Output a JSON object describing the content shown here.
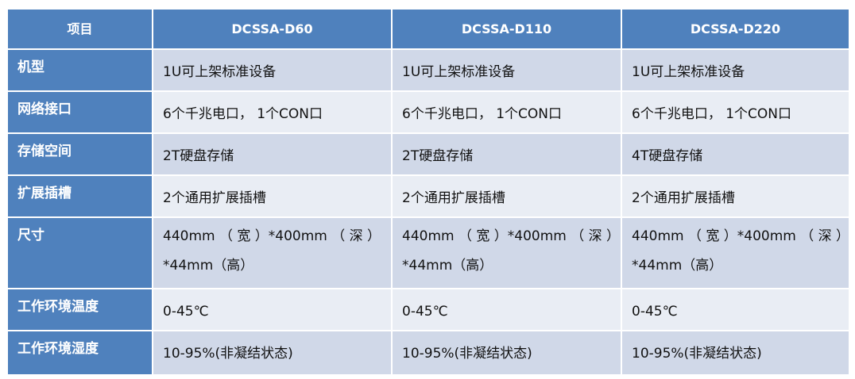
{
  "colors": {
    "header": "#4f81bd",
    "row_dark": "#d0d8e8",
    "row_light": "#e9edf4"
  },
  "table": {
    "headers": [
      "项目",
      "DCSSA-D60",
      "DCSSA-D110",
      "DCSSA-D220"
    ],
    "rows": [
      {
        "label": "机型",
        "values": [
          "1U可上架标准设备",
          "1U可上架标准设备",
          "1U可上架标准设备"
        ]
      },
      {
        "label": "网络接口",
        "values": [
          "6个千兆电口， 1个CON口",
          "6个千兆电口， 1个CON口",
          "6个千兆电口， 1个CON口"
        ]
      },
      {
        "label": "存储空间",
        "values": [
          "2T硬盘存储",
          "2T硬盘存储",
          "4T硬盘存储"
        ]
      },
      {
        "label": "扩展插槽",
        "values": [
          "2个通用扩展插槽",
          "2个通用扩展插槽",
          "2个通用扩展插槽"
        ]
      },
      {
        "label": "尺寸",
        "values": [
          "440mm （ 宽 ）*400mm （ 深 ）*44mm（高）",
          "440mm （ 宽 ）*400mm （ 深 ）*44mm（高）",
          "440mm （ 宽 ）*400mm （ 深 ）*44mm（高）"
        ]
      },
      {
        "label": "工作环境温度",
        "values": [
          "0-45℃",
          "0-45℃",
          "0-45℃"
        ]
      },
      {
        "label": "工作环境湿度",
        "values": [
          "10-95%(非凝结状态)",
          "10-95%(非凝结状态)",
          "10-95%(非凝结状态)"
        ]
      }
    ]
  }
}
